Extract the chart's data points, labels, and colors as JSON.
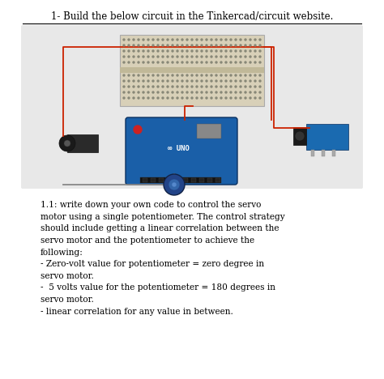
{
  "title": "1- Build the below circuit in the Tinkercad/circuit website.",
  "page_bg": "#ffffff",
  "circuit_bg": "#e8e8e8",
  "arduino_blue": "#1a5fa8",
  "wire_red": "#cc2200",
  "wire_gray": "#888888",
  "body_lines": [
    "1.1: write down your own code to control the servo",
    "motor using a single potentiometer. The control strategy",
    "should include getting a linear correlation between the",
    "servo motor and the potentiometer to achieve the",
    "following:",
    "- Zero-volt value for potentiometer = zero degree in",
    "servo motor.",
    "-  5 volts value for the potentiometer = 180 degrees in",
    "servo motor.",
    "- linear correlation for any value in between."
  ]
}
